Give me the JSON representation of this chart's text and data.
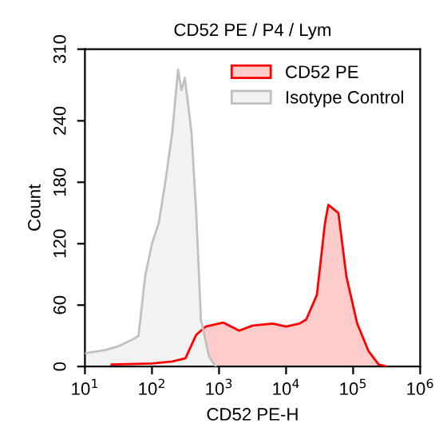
{
  "chart_data": {
    "type": "area",
    "title": "CD52 PE / P4 / Lym",
    "xlabel": "CD52 PE-H",
    "ylabel": "Count",
    "log": "x",
    "xlim": [
      10,
      1000000
    ],
    "xticks": [
      {
        "value": 10,
        "label": "10$^{1}$"
      },
      {
        "value": 100,
        "label": "10$^{2}$"
      },
      {
        "value": 1000,
        "label": "10$^{3}$"
      },
      {
        "value": 10000,
        "label": "10$^{4}$"
      },
      {
        "value": 100000,
        "label": "10$^{5}$"
      },
      {
        "value": 1000000,
        "label": "10$^{6}$"
      }
    ],
    "ylim": [
      0,
      310
    ],
    "yticks": [
      0,
      60,
      120,
      180,
      240,
      310
    ],
    "grid": false,
    "legend": "top right",
    "series": [
      {
        "name": "CD52 PE",
        "color": "#ff0000",
        "x": [
          25,
          100,
          200,
          316,
          457,
          631,
          1150,
          2000,
          3160,
          6310,
          10000,
          15800,
          20000,
          28800,
          38000,
          42700,
          60300,
          79400,
          115000,
          170000,
          240000,
          316000
        ],
        "values": [
          2,
          3,
          5,
          8,
          31,
          39,
          43,
          35,
          40,
          42,
          39,
          42,
          46,
          70,
          140,
          158,
          150,
          88,
          42,
          15,
          2,
          0
        ]
      },
      {
        "name": "Isotype Control",
        "color": "#c0c0c0",
        "x": [
          10,
          20,
          32,
          50,
          63,
          79,
          100,
          126,
          158,
          200,
          245,
          275,
          309,
          355,
          389,
          457,
          537,
          708,
          891
        ],
        "values": [
          13,
          16,
          20,
          26,
          30,
          88,
          120,
          140,
          180,
          228,
          290,
          270,
          282,
          250,
          228,
          150,
          46,
          10,
          0
        ]
      }
    ]
  }
}
